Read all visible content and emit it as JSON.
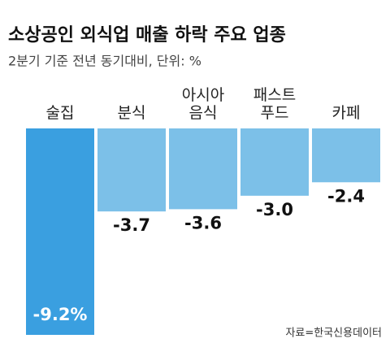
{
  "chart_data": {
    "type": "bar",
    "title": "소상공인 외식업 매출 하락 주요 업종",
    "subtitle": "2분기 기준 전년 동기대비, 단위: %",
    "categories": [
      "술집",
      "분식",
      "아시아\n음식",
      "패스트\n푸드",
      "카페"
    ],
    "values": [
      -9.2,
      -3.7,
      -3.6,
      -3.0,
      -2.4
    ],
    "value_labels": [
      "-9.2%",
      "-3.7",
      "-3.6",
      "-3.0",
      "-2.4"
    ],
    "colors": [
      "#3a9fe0",
      "#7cc0e8",
      "#7cc0e8",
      "#7cc0e8",
      "#7cc0e8"
    ],
    "source": "자료=한국신용데이터"
  }
}
